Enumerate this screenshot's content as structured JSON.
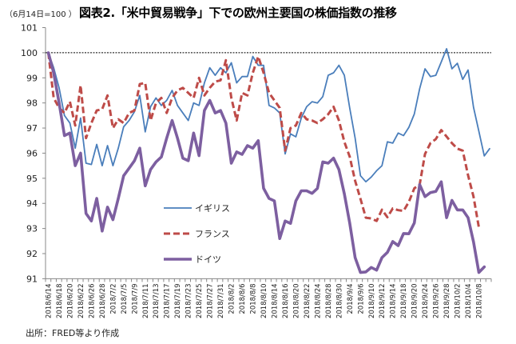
{
  "unit_label": "（6月14日=100 ）",
  "title": "図表2.「米中貿易戦争」下での欧州主要国の株価指数の推移",
  "source": "出所：FRED等より作成",
  "chart_data": {
    "type": "line",
    "title": "図表2.「米中貿易戦争」下での欧州主要国の株価指数の推移",
    "xlabel": "",
    "ylabel": "（6月14日=100 ）",
    "ylim": [
      91,
      101
    ],
    "yticks": [
      91,
      92,
      93,
      94,
      95,
      96,
      97,
      98,
      99,
      100,
      101
    ],
    "reference_line": 100,
    "legend_position": "center-left",
    "x_tick_labels": [
      "2018/6/14",
      "2018/6/18",
      "2018/6/20",
      "2018/6/22",
      "2018/6/26",
      "2018/6/28",
      "2018/7/2",
      "2018/7/5",
      "2018/7/9",
      "2018/7/11",
      "2018/7/13",
      "2018/7/17",
      "2018/7/19",
      "2018/7/23",
      "2018/7/25",
      "2018/7/27",
      "2018/7/31",
      "2018/8/2",
      "2018/8/6",
      "2018/8/8",
      "2018/8/10",
      "2018/8/14",
      "2018/8/16",
      "2018/8/20",
      "2018/8/22",
      "2018/8/24",
      "2018/8/28",
      "2018/8/30",
      "2018/9/4",
      "2018/9/6",
      "2018/9/10",
      "2018/9/12",
      "2018/9/14",
      "2018/9/18",
      "2018/9/20",
      "2018/9/24",
      "2018/9/26",
      "2018/9/28",
      "2018/10/2",
      "2018/10/4",
      "2018/10/8"
    ],
    "series": [
      {
        "name": "イギリス",
        "color": "#4a7ebb",
        "style": "solid",
        "values": [
          100,
          99.4,
          98.6,
          97.5,
          97.2,
          96.2,
          97.4,
          95.6,
          95.55,
          96.35,
          95.5,
          96.3,
          95.5,
          96.2,
          97.05,
          97.3,
          97.65,
          98.3,
          96.85,
          97.85,
          98.2,
          97.9,
          98.1,
          98.5,
          97.9,
          97.6,
          97.3,
          98.0,
          97.9,
          98.8,
          99.4,
          99.1,
          99.4,
          99.2,
          99.6,
          98.8,
          99.05,
          99.05,
          99.85,
          99.5,
          99.5,
          97.9,
          97.8,
          97.6,
          95.97,
          96.77,
          96.65,
          97.4,
          97.85,
          98.05,
          98.0,
          98.25,
          99.1,
          99.2,
          99.5,
          99.1,
          97.8,
          96.6,
          95.1,
          94.86,
          95.05,
          95.3,
          95.5,
          96.45,
          96.4,
          96.8,
          96.7,
          97.03,
          97.56,
          98.57,
          99.36,
          99.05,
          99.1,
          99.63,
          100.16,
          99.36,
          99.58,
          98.94,
          99.31,
          97.83,
          96.87,
          95.89,
          96.18
        ]
      },
      {
        "name": "フランス",
        "color": "#be4b48",
        "style": "dashed",
        "values": [
          100,
          98.2,
          97.8,
          97.6,
          98.05,
          97.1,
          98.7,
          96.6,
          97.2,
          97.7,
          97.75,
          98.3,
          97.0,
          97.35,
          97.2,
          97.6,
          97.7,
          98.75,
          98.8,
          97.3,
          98.0,
          98.2,
          97.6,
          98.2,
          98.5,
          98.6,
          98.4,
          98.2,
          99.0,
          98.3,
          98.6,
          98.85,
          98.9,
          99.7,
          98.2,
          97.3,
          98.4,
          98.3,
          99.2,
          99.85,
          99.2,
          98.4,
          98.1,
          97.8,
          96.1,
          97.0,
          97.1,
          97.6,
          97.35,
          97.3,
          97.2,
          97.35,
          97.55,
          97.85,
          97.3,
          96.45,
          95.86,
          94.9,
          94.18,
          93.43,
          93.4,
          93.3,
          93.75,
          93.45,
          93.8,
          93.73,
          93.7,
          94.06,
          94.6,
          94.75,
          95.97,
          96.4,
          96.56,
          96.92,
          96.66,
          96.4,
          96.18,
          96.1,
          95.12,
          94.27,
          93.05
        ]
      },
      {
        "name": "ドイツ",
        "color": "#7d5fa0",
        "style": "solid",
        "values": [
          100,
          99.2,
          98.0,
          96.7,
          96.8,
          95.5,
          96.0,
          93.6,
          93.3,
          94.2,
          92.9,
          93.85,
          93.35,
          94.2,
          95.1,
          95.4,
          95.7,
          96.2,
          94.7,
          95.35,
          95.65,
          95.85,
          96.6,
          97.3,
          96.6,
          95.8,
          95.7,
          96.8,
          95.9,
          97.7,
          98.1,
          97.6,
          97.7,
          97.2,
          95.6,
          96.05,
          95.95,
          96.3,
          96.2,
          96.5,
          94.6,
          94.2,
          94.1,
          92.6,
          93.3,
          93.2,
          94.1,
          94.5,
          94.5,
          94.4,
          94.6,
          95.65,
          95.6,
          95.8,
          95.35,
          94.38,
          93.22,
          91.84,
          91.25,
          91.27,
          91.45,
          91.34,
          91.84,
          92.05,
          92.48,
          92.32,
          92.8,
          92.79,
          93.22,
          94.75,
          94.27,
          94.43,
          94.48,
          94.86,
          93.43,
          94.12,
          93.74,
          93.74,
          93.43,
          92.47,
          91.25,
          91.47
        ]
      }
    ]
  }
}
